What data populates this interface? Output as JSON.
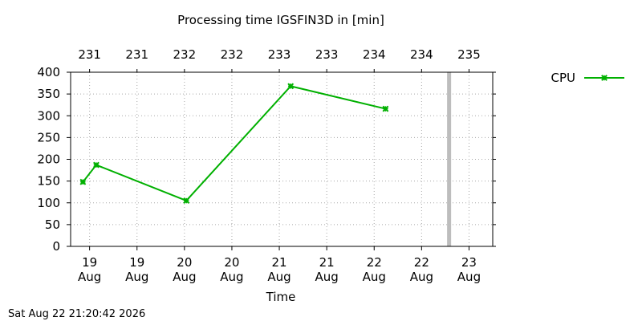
{
  "chart_data": {
    "type": "line",
    "title": "Processing time IGSFIN3D in [min]",
    "xlabel": "Time",
    "ylabel": "",
    "ylim": [
      0,
      400
    ],
    "xlim": [
      18.8,
      23.25
    ],
    "grid": true,
    "legend_position": "top-right",
    "x_ticks": [
      {
        "value": 19,
        "label": "19\nAug"
      },
      {
        "value": 19.5,
        "label": "19\nAug"
      },
      {
        "value": 20,
        "label": "20\nAug"
      },
      {
        "value": 20.5,
        "label": "20\nAug"
      },
      {
        "value": 21,
        "label": "21\nAug"
      },
      {
        "value": 21.5,
        "label": "21\nAug"
      },
      {
        "value": 22,
        "label": "22\nAug"
      },
      {
        "value": 22.5,
        "label": "22\nAug"
      },
      {
        "value": 23,
        "label": "23\nAug"
      }
    ],
    "x2_ticks": [
      {
        "value": 19,
        "label": "231"
      },
      {
        "value": 19.5,
        "label": "231"
      },
      {
        "value": 20,
        "label": "232"
      },
      {
        "value": 20.5,
        "label": "232"
      },
      {
        "value": 21,
        "label": "233"
      },
      {
        "value": 21.5,
        "label": "233"
      },
      {
        "value": 22,
        "label": "234"
      },
      {
        "value": 22.5,
        "label": "234"
      },
      {
        "value": 23,
        "label": "235"
      }
    ],
    "y_ticks": [
      0,
      50,
      100,
      150,
      200,
      250,
      300,
      350,
      400
    ],
    "marker_line_x": 22.79,
    "series": [
      {
        "name": "CPU",
        "color": "#00b000",
        "marker": "x-cross",
        "points": [
          {
            "x": 18.93,
            "y": 148
          },
          {
            "x": 19.07,
            "y": 187
          },
          {
            "x": 20.02,
            "y": 105
          },
          {
            "x": 21.12,
            "y": 368
          },
          {
            "x": 22.12,
            "y": 316
          }
        ]
      }
    ]
  },
  "footer": {
    "timestamp": "Sat Aug 22 21:20:42 2026"
  }
}
